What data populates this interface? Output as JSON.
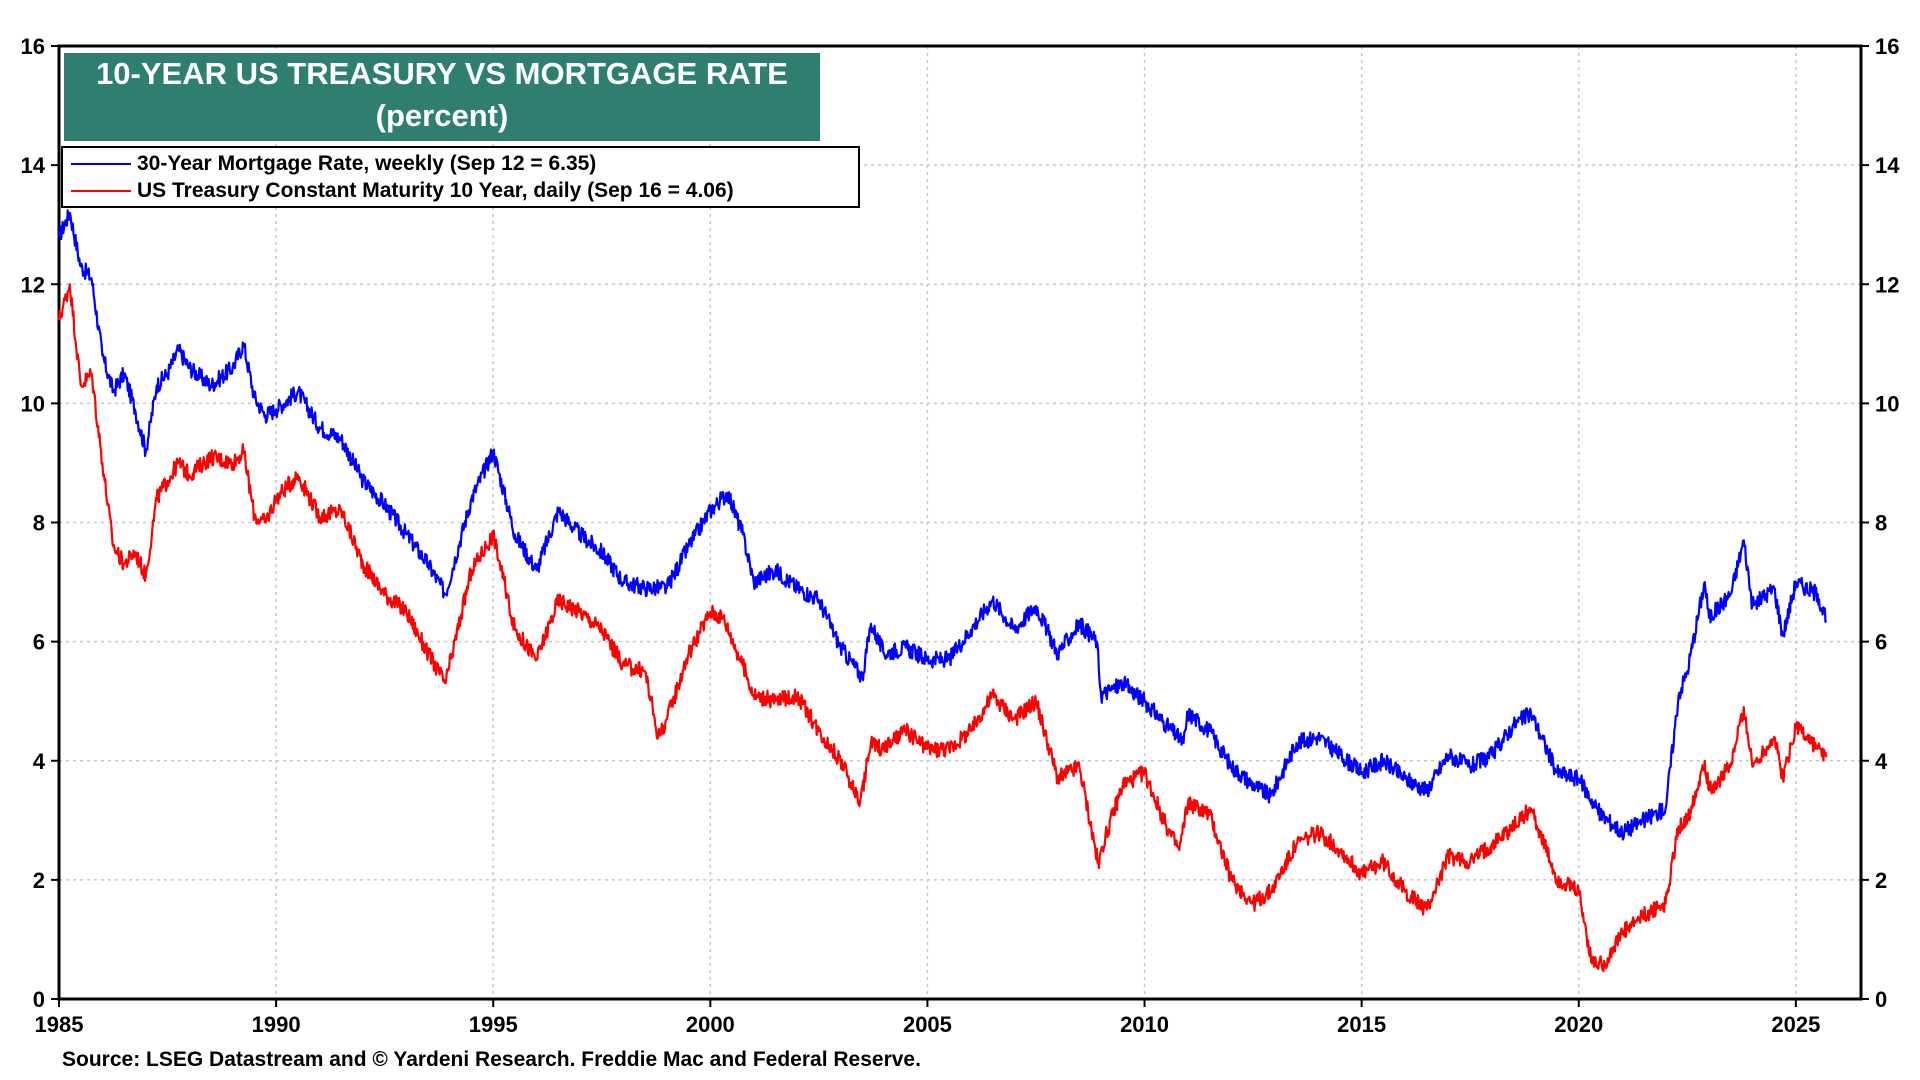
{
  "chart_data": {
    "type": "line",
    "title": "10-YEAR US TREASURY VS MORTGAGE RATE",
    "subtitle": "(percent)",
    "xlabel": "",
    "ylabel": "",
    "xlim": [
      1985,
      2026.5
    ],
    "ylim": [
      0,
      16
    ],
    "x_ticks": [
      "1985",
      "1990",
      "1995",
      "2000",
      "2005",
      "2010",
      "2015",
      "2020",
      "2025"
    ],
    "y_ticks": [
      "0",
      "2",
      "4",
      "6",
      "8",
      "10",
      "12",
      "14",
      "16"
    ],
    "grid": true,
    "legend_position": "top-left",
    "source": "Source: LSEG Datastream and © Yardeni Research. Freddie Mac and Federal Reserve.",
    "series": [
      {
        "name": "30-Year Mortgage Rate, weekly (Sep 12 = 6.35)",
        "color": "#0000ff",
        "x": [
          1985.0,
          1985.25,
          1985.5,
          1985.75,
          1986.0,
          1986.25,
          1986.5,
          1986.75,
          1987.0,
          1987.25,
          1987.5,
          1987.75,
          1988.0,
          1988.5,
          1989.0,
          1989.25,
          1989.5,
          1989.75,
          1990.0,
          1990.5,
          1991.0,
          1991.5,
          1992.0,
          1992.5,
          1993.0,
          1993.5,
          1993.9,
          1994.5,
          1995.0,
          1995.5,
          1996.0,
          1996.5,
          1997.0,
          1997.5,
          1998.0,
          1998.5,
          1999.0,
          1999.5,
          2000.0,
          2000.4,
          2000.75,
          2001.0,
          2001.5,
          2002.0,
          2002.5,
          2003.0,
          2003.5,
          2003.7,
          2004.0,
          2004.5,
          2005.0,
          2005.5,
          2006.0,
          2006.5,
          2007.0,
          2007.5,
          2008.0,
          2008.5,
          2008.9,
          2009.0,
          2009.5,
          2010.0,
          2010.5,
          2010.9,
          2011.0,
          2011.5,
          2012.0,
          2012.5,
          2012.9,
          2013.5,
          2014.0,
          2014.5,
          2015.0,
          2015.5,
          2016.0,
          2016.5,
          2017.0,
          2017.5,
          2018.0,
          2018.5,
          2018.9,
          2019.5,
          2020.0,
          2020.5,
          2021.0,
          2021.5,
          2022.0,
          2022.3,
          2022.5,
          2022.9,
          2023.0,
          2023.5,
          2023.8,
          2024.0,
          2024.5,
          2024.7,
          2025.0,
          2025.5,
          2025.7
        ],
        "values": [
          12.8,
          13.2,
          12.3,
          12.1,
          10.8,
          10.2,
          10.5,
          9.9,
          9.2,
          10.3,
          10.5,
          10.9,
          10.6,
          10.3,
          10.6,
          11.0,
          10.1,
          9.8,
          9.9,
          10.2,
          9.6,
          9.4,
          8.7,
          8.3,
          7.8,
          7.3,
          6.8,
          8.4,
          9.2,
          7.8,
          7.2,
          8.2,
          7.8,
          7.5,
          7.0,
          6.9,
          6.9,
          7.6,
          8.2,
          8.5,
          7.8,
          7.0,
          7.2,
          6.9,
          6.7,
          5.9,
          5.4,
          6.3,
          5.8,
          5.9,
          5.7,
          5.7,
          6.2,
          6.7,
          6.2,
          6.6,
          5.8,
          6.3,
          6.0,
          5.1,
          5.3,
          5.0,
          4.6,
          4.3,
          4.8,
          4.5,
          3.9,
          3.6,
          3.4,
          4.3,
          4.4,
          4.1,
          3.8,
          4.0,
          3.7,
          3.5,
          4.1,
          3.9,
          4.1,
          4.6,
          4.8,
          3.8,
          3.7,
          3.1,
          2.8,
          3.0,
          3.2,
          5.1,
          5.5,
          7.0,
          6.4,
          6.8,
          7.7,
          6.6,
          6.9,
          6.1,
          7.0,
          6.8,
          6.35
        ]
      },
      {
        "name": "US Treasury Constant Maturity 10 Year, daily (Sep 16 = 4.06)",
        "color": "#ff0000",
        "x": [
          1985.0,
          1985.25,
          1985.5,
          1985.75,
          1986.0,
          1986.25,
          1986.5,
          1986.75,
          1987.0,
          1987.25,
          1987.5,
          1987.75,
          1988.0,
          1988.5,
          1989.0,
          1989.25,
          1989.5,
          1989.75,
          1990.0,
          1990.5,
          1991.0,
          1991.5,
          1992.0,
          1992.5,
          1993.0,
          1993.5,
          1993.9,
          1994.5,
          1995.0,
          1995.5,
          1996.0,
          1996.5,
          1997.0,
          1997.5,
          1998.0,
          1998.5,
          1998.8,
          1999.0,
          1999.5,
          2000.0,
          2000.3,
          2000.75,
          2001.0,
          2001.5,
          2002.0,
          2002.5,
          2003.0,
          2003.45,
          2003.7,
          2004.0,
          2004.5,
          2005.0,
          2005.5,
          2006.0,
          2006.5,
          2007.0,
          2007.5,
          2008.0,
          2008.5,
          2008.95,
          2009.0,
          2009.5,
          2010.0,
          2010.5,
          2010.8,
          2011.0,
          2011.5,
          2012.0,
          2012.5,
          2012.9,
          2013.5,
          2014.0,
          2014.5,
          2015.0,
          2015.5,
          2016.0,
          2016.5,
          2017.0,
          2017.5,
          2018.0,
          2018.5,
          2018.9,
          2019.5,
          2020.0,
          2020.3,
          2020.6,
          2021.0,
          2021.5,
          2022.0,
          2022.3,
          2022.5,
          2022.9,
          2023.0,
          2023.5,
          2023.8,
          2024.0,
          2024.5,
          2024.7,
          2025.0,
          2025.5,
          2025.7
        ],
        "values": [
          11.4,
          12.0,
          10.3,
          10.5,
          9.0,
          7.6,
          7.3,
          7.5,
          7.1,
          8.4,
          8.7,
          9.0,
          8.8,
          9.1,
          9.0,
          9.2,
          8.1,
          8.0,
          8.4,
          8.8,
          8.1,
          8.2,
          7.3,
          6.8,
          6.5,
          5.8,
          5.3,
          7.2,
          7.8,
          6.2,
          5.7,
          6.7,
          6.5,
          6.2,
          5.6,
          5.5,
          4.4,
          4.7,
          5.8,
          6.5,
          6.4,
          5.6,
          5.1,
          5.0,
          5.1,
          4.5,
          4.0,
          3.3,
          4.3,
          4.2,
          4.5,
          4.2,
          4.2,
          4.5,
          5.1,
          4.7,
          5.0,
          3.7,
          3.9,
          2.2,
          2.5,
          3.6,
          3.8,
          2.9,
          2.5,
          3.3,
          3.1,
          2.0,
          1.6,
          1.8,
          2.6,
          2.8,
          2.5,
          2.1,
          2.3,
          1.8,
          1.5,
          2.4,
          2.3,
          2.6,
          2.9,
          3.2,
          2.0,
          1.8,
          0.6,
          0.6,
          1.1,
          1.4,
          1.6,
          2.9,
          3.0,
          4.0,
          3.5,
          3.9,
          4.9,
          3.9,
          4.4,
          3.7,
          4.6,
          4.2,
          4.06
        ]
      }
    ]
  }
}
